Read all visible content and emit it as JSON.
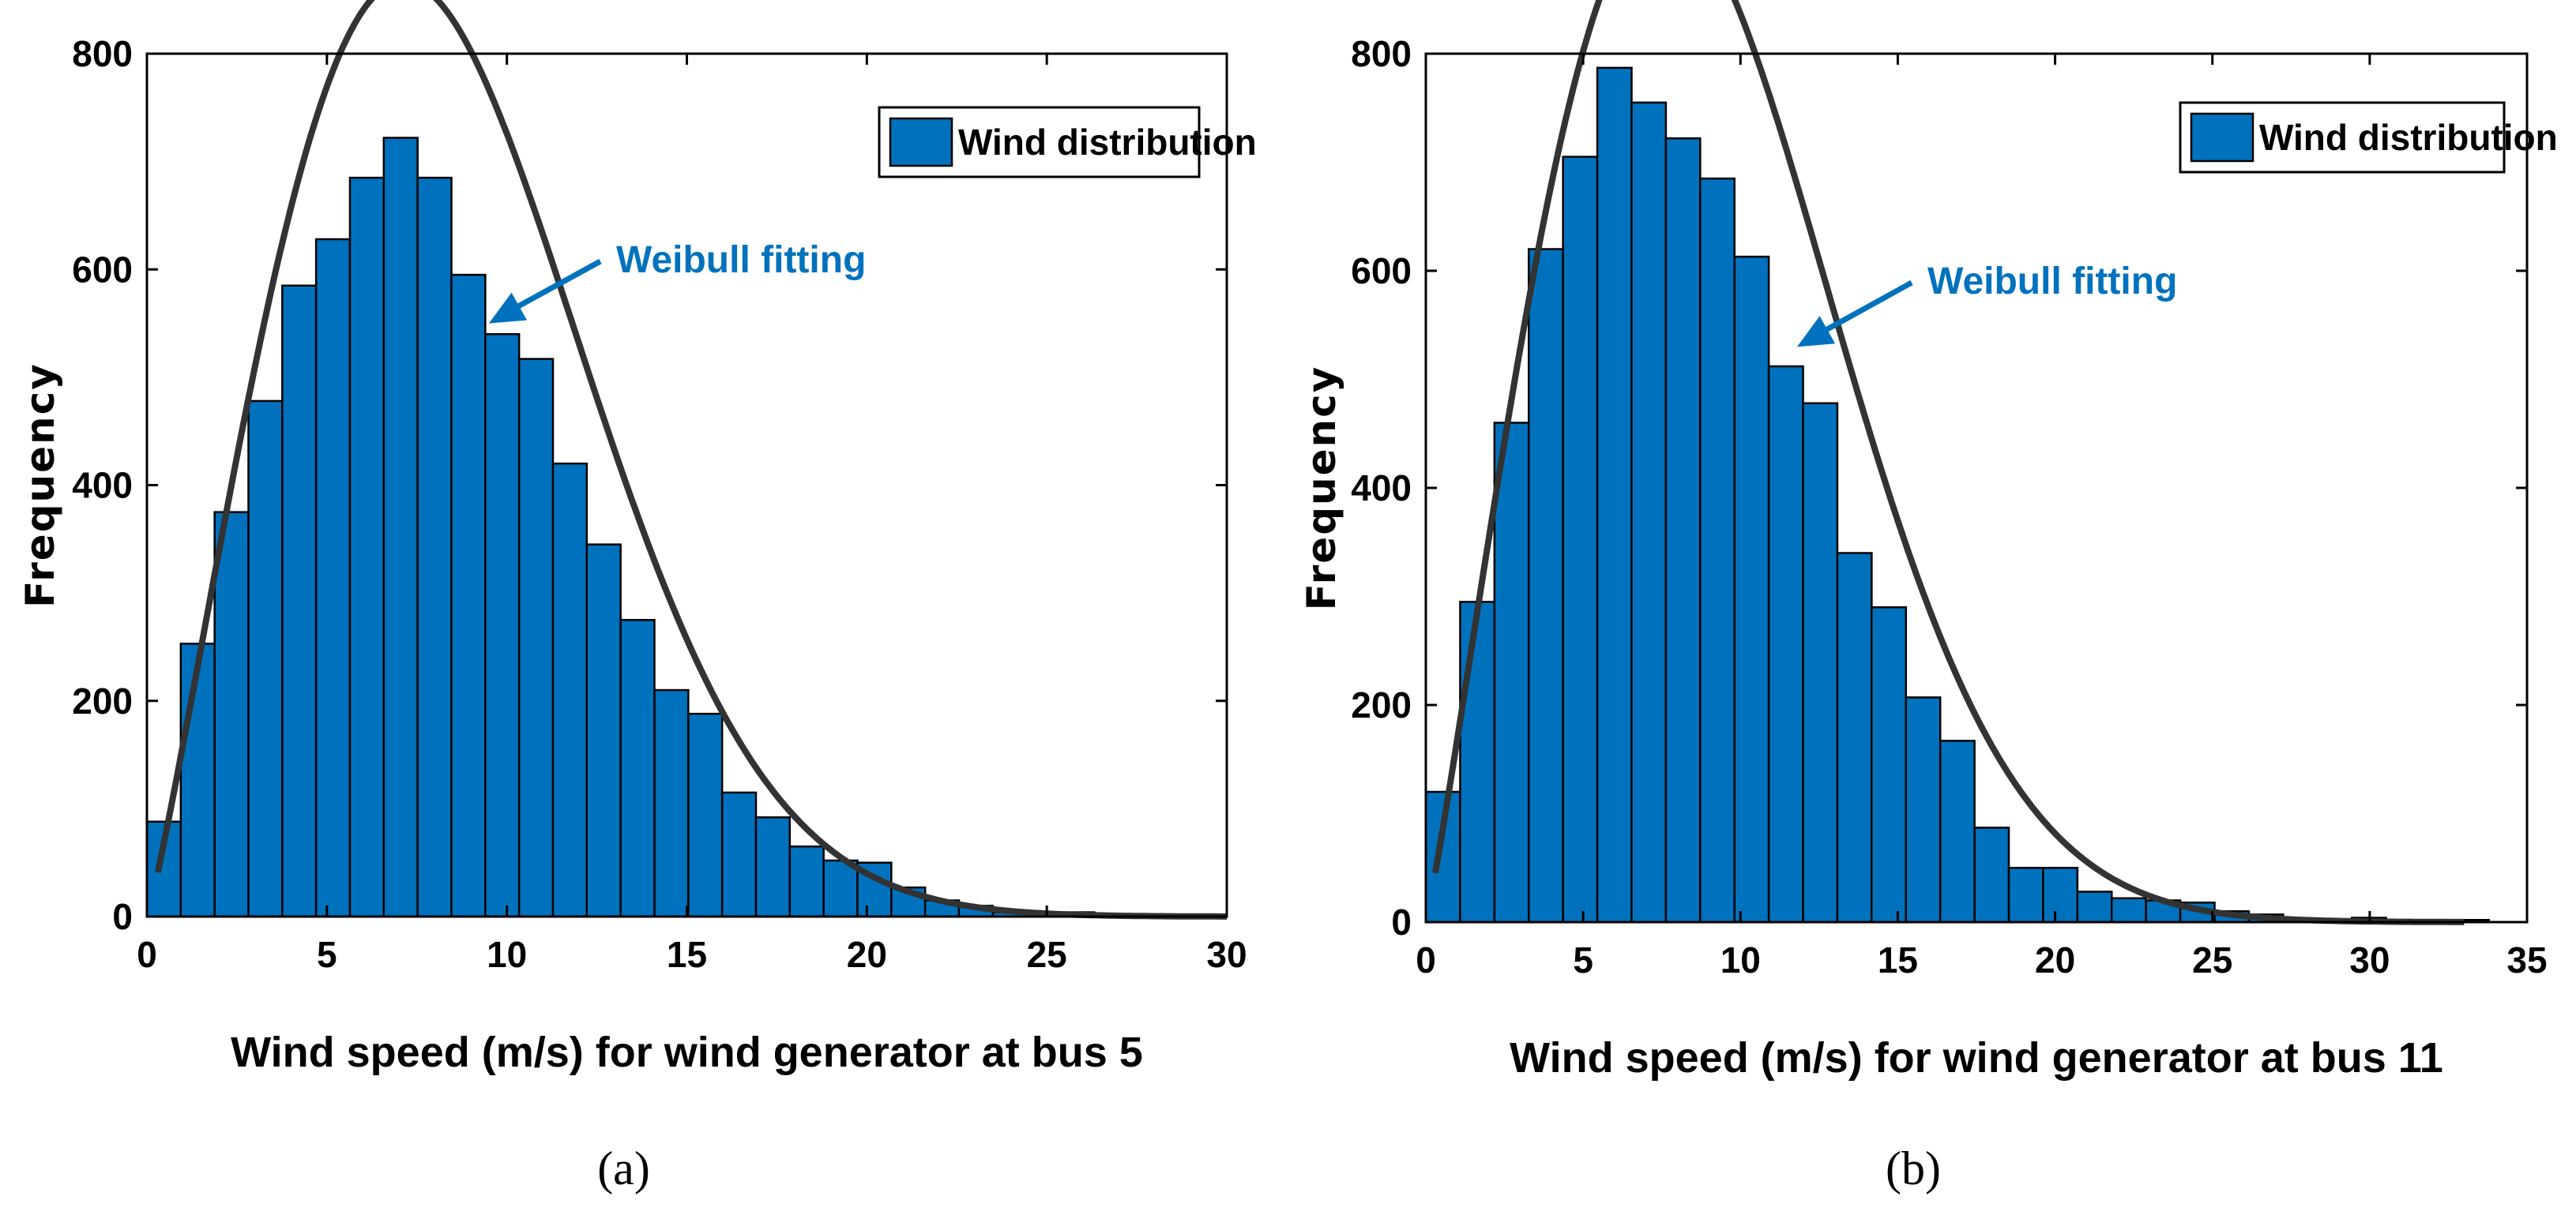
{
  "colors": {
    "bar": "#0072BD",
    "curve": "#333333",
    "annotation": "#0072BD"
  },
  "chart_data": [
    {
      "type": "bar",
      "panel_label": "(a)",
      "xlabel": "Wind speed (m/s) for wind generator at bus 5",
      "ylabel": "Frequency",
      "xlim": [
        0,
        30
      ],
      "ylim": [
        0,
        800
      ],
      "xticks": [
        "0",
        "5",
        "10",
        "15",
        "20",
        "25",
        "30"
      ],
      "yticks": [
        "0",
        "200",
        "400",
        "600",
        "800"
      ],
      "legend": {
        "label": "Wind distribution",
        "position": "top-right"
      },
      "annotation": {
        "text": "Weibull fitting",
        "points_to_x": 9.5,
        "points_to_y": 550
      },
      "bin_width": 0.94,
      "bin_start": 0,
      "values": [
        88,
        253,
        375,
        478,
        585,
        628,
        685,
        722,
        685,
        595,
        540,
        517,
        420,
        345,
        275,
        210,
        188,
        115,
        92,
        65,
        52,
        50,
        27,
        15,
        10,
        4,
        3,
        4,
        1,
        1,
        1
      ],
      "fit": {
        "name": "Weibull fitting",
        "k": 2.13,
        "c": 9.6,
        "scale": 9300,
        "x_from": 0.3,
        "x_to": 30
      }
    },
    {
      "type": "bar",
      "panel_label": "(b)",
      "xlabel": "Wind speed (m/s) for wind generator at bus 11",
      "ylabel": "Frequency",
      "xlim": [
        0,
        35
      ],
      "ylim": [
        0,
        800
      ],
      "xticks": [
        "0",
        "5",
        "10",
        "15",
        "20",
        "25",
        "30",
        "35"
      ],
      "yticks": [
        "0",
        "200",
        "400",
        "600",
        "800"
      ],
      "legend": {
        "label": "Wind distribution",
        "position": "top-right"
      },
      "annotation": {
        "text": "Weibull fitting",
        "points_to_x": 11.8,
        "points_to_y": 530
      },
      "bin_width": 1.09,
      "bin_start": 0,
      "values": [
        120,
        295,
        460,
        620,
        705,
        787,
        755,
        722,
        685,
        613,
        512,
        478,
        340,
        290,
        207,
        167,
        87,
        50,
        50,
        28,
        22,
        20,
        18,
        10,
        7,
        3,
        1,
        4,
        1,
        1,
        2
      ],
      "fit": {
        "name": "Weibull fitting",
        "k": 2.1,
        "c": 10.3,
        "scale": 10850,
        "x_from": 0.3,
        "x_to": 33
      }
    }
  ]
}
